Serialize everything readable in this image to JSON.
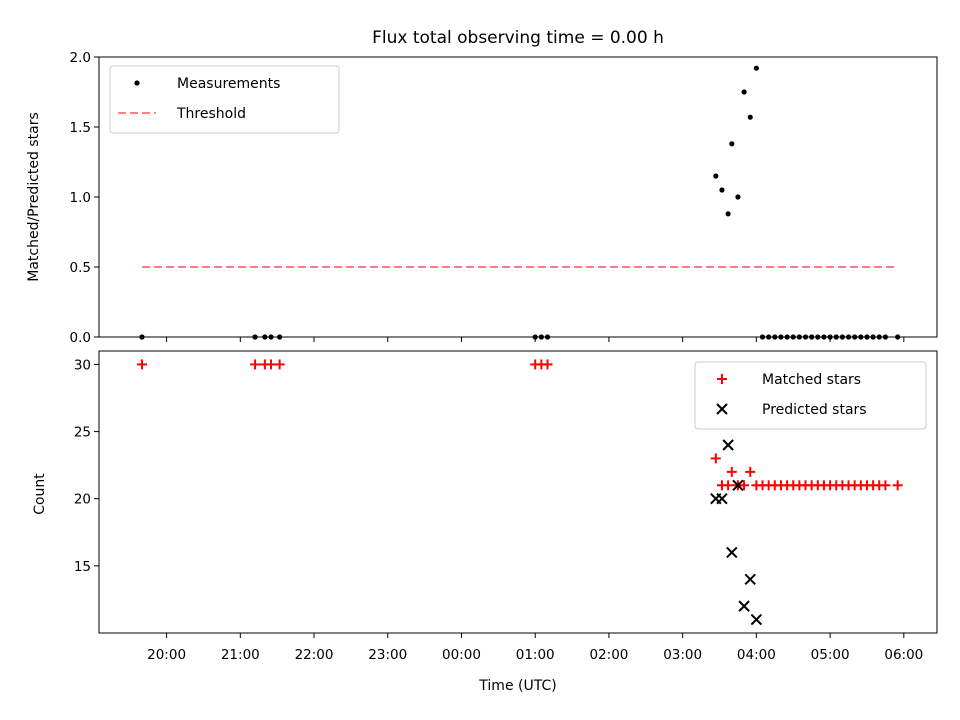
{
  "chart_data": [
    {
      "panel": "top",
      "type": "scatter",
      "title": "Flux total observing time = 0.00 h",
      "xlabel": "",
      "ylabel": "Matched/Predicted stars",
      "ylim": [
        0,
        2.0
      ],
      "yticks": [
        0.0,
        0.5,
        1.0,
        1.5,
        2.0
      ],
      "ytick_labels": [
        "0.0",
        "0.5",
        "1.0",
        "1.5",
        "2.0"
      ],
      "legend": {
        "placement": "top-left",
        "entries": [
          "Measurements",
          "Threshold"
        ]
      },
      "series": [
        {
          "name": "Measurements",
          "marker": "dot",
          "color": "#000000",
          "x": [
            "19:40",
            "21:12",
            "21:20",
            "21:25",
            "21:32",
            "01:00",
            "01:05",
            "01:10",
            "03:27",
            "03:32",
            "03:37",
            "03:40",
            "03:45",
            "03:50",
            "03:55",
            "04:00",
            "04:05",
            "04:10",
            "04:15",
            "04:20",
            "04:25",
            "04:30",
            "04:35",
            "04:40",
            "04:45",
            "04:50",
            "04:55",
            "05:00",
            "05:05",
            "05:10",
            "05:15",
            "05:20",
            "05:25",
            "05:30",
            "05:35",
            "05:40",
            "05:45",
            "05:55"
          ],
          "y": [
            0,
            0,
            0,
            0,
            0,
            0,
            0,
            0,
            1.15,
            1.05,
            0.88,
            1.38,
            1.0,
            1.75,
            1.57,
            1.92,
            0,
            0,
            0,
            0,
            0,
            0,
            0,
            0,
            0,
            0,
            0,
            0,
            0,
            0,
            0,
            0,
            0,
            0,
            0,
            0,
            0,
            0
          ]
        },
        {
          "name": "Threshold",
          "marker": "dashed-line",
          "color": "#ff7f7f",
          "x": [
            "19:40",
            "05:55"
          ],
          "y": [
            0.5,
            0.5
          ]
        }
      ]
    },
    {
      "panel": "bottom",
      "type": "scatter",
      "title": "",
      "xlabel": "Time (UTC)",
      "ylabel": "Count",
      "ylim": [
        10,
        31
      ],
      "yticks": [
        15,
        20,
        25,
        30
      ],
      "ytick_labels": [
        "15",
        "20",
        "25",
        "30"
      ],
      "x_range": [
        "19:05",
        "06:27"
      ],
      "xticks": [
        "20:00",
        "21:00",
        "22:00",
        "23:00",
        "00:00",
        "01:00",
        "02:00",
        "03:00",
        "04:00",
        "05:00",
        "06:00"
      ],
      "legend": {
        "placement": "top-right",
        "entries": [
          "Matched stars",
          "Predicted stars"
        ]
      },
      "series": [
        {
          "name": "Matched stars",
          "marker": "plus",
          "color": "#ff0000",
          "x": [
            "19:40",
            "21:12",
            "21:20",
            "21:25",
            "21:32",
            "01:00",
            "01:05",
            "01:10",
            "03:27",
            "03:32",
            "03:37",
            "03:40",
            "03:45",
            "03:50",
            "03:55",
            "04:00",
            "04:05",
            "04:10",
            "04:15",
            "04:20",
            "04:25",
            "04:30",
            "04:35",
            "04:40",
            "04:45",
            "04:50",
            "04:55",
            "05:00",
            "05:05",
            "05:10",
            "05:15",
            "05:20",
            "05:25",
            "05:30",
            "05:35",
            "05:40",
            "05:45",
            "05:55"
          ],
          "y": [
            30,
            30,
            30,
            30,
            30,
            30,
            30,
            30,
            23,
            21,
            21,
            22,
            21,
            21,
            22,
            21,
            21,
            21,
            21,
            21,
            21,
            21,
            21,
            21,
            21,
            21,
            21,
            21,
            21,
            21,
            21,
            21,
            21,
            21,
            21,
            21,
            21,
            21
          ]
        },
        {
          "name": "Predicted stars",
          "marker": "x",
          "color": "#000000",
          "x": [
            "03:27",
            "03:32",
            "03:37",
            "03:40",
            "03:45",
            "03:50",
            "03:55",
            "04:00"
          ],
          "y": [
            20,
            20,
            24,
            16,
            21,
            12,
            14,
            11
          ]
        }
      ]
    }
  ]
}
